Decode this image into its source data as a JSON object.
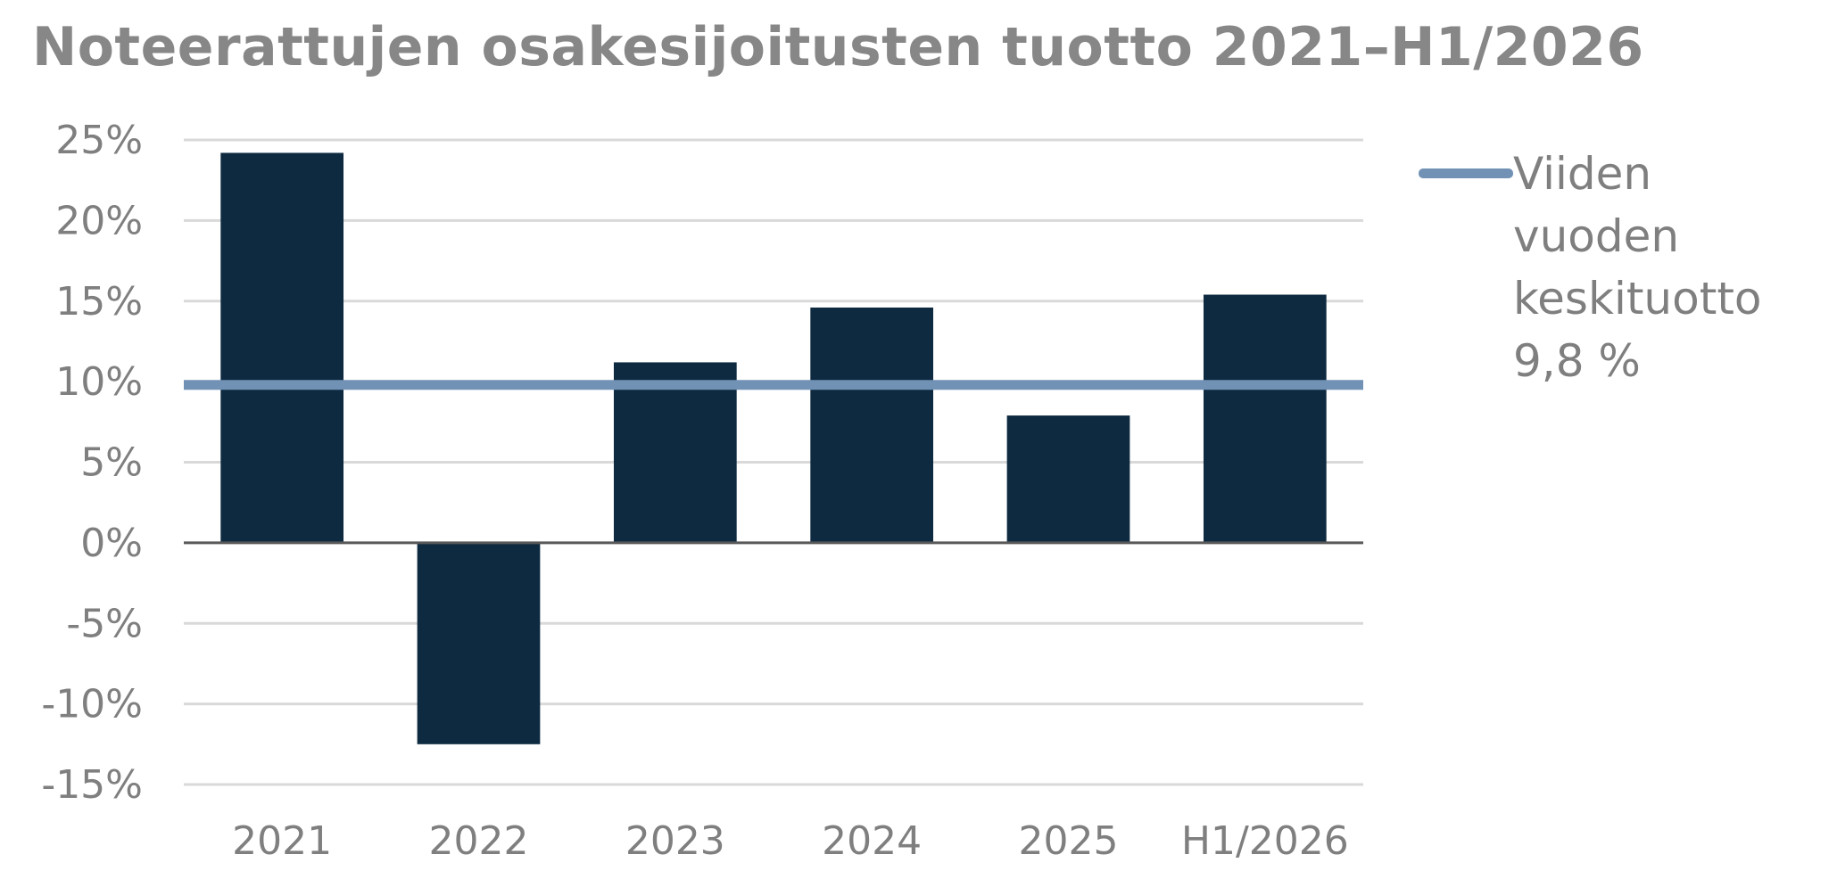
{
  "chart_data": {
    "type": "bar",
    "title": "Noteerattujen osakesijoitusten tuotto 2021–H1/2026",
    "categories": [
      "2021",
      "2022",
      "2023",
      "2024",
      "2025",
      "H1/2026"
    ],
    "values": [
      24.2,
      -12.5,
      11.2,
      14.6,
      7.9,
      15.4
    ],
    "y_unit": "%",
    "ylim": [
      -15,
      25
    ],
    "yticks": [
      25,
      20,
      15,
      10,
      5,
      0,
      -5,
      -10,
      -15
    ],
    "ytick_labels": [
      "25%",
      "20%",
      "15%",
      "10%",
      "5%",
      "0%",
      "-5%",
      "-10%",
      "-15%"
    ],
    "grid": true,
    "reference_line": {
      "label": "Viiden vuoden keskituotto 9,8 %",
      "value": 9.8
    },
    "legend_position": "right",
    "colors": {
      "bar": "#0e2a40",
      "reference_line": "#7192b5",
      "grid": "#d9d9d9",
      "zero_line": "#595959",
      "text": "#7f7f7f"
    }
  }
}
